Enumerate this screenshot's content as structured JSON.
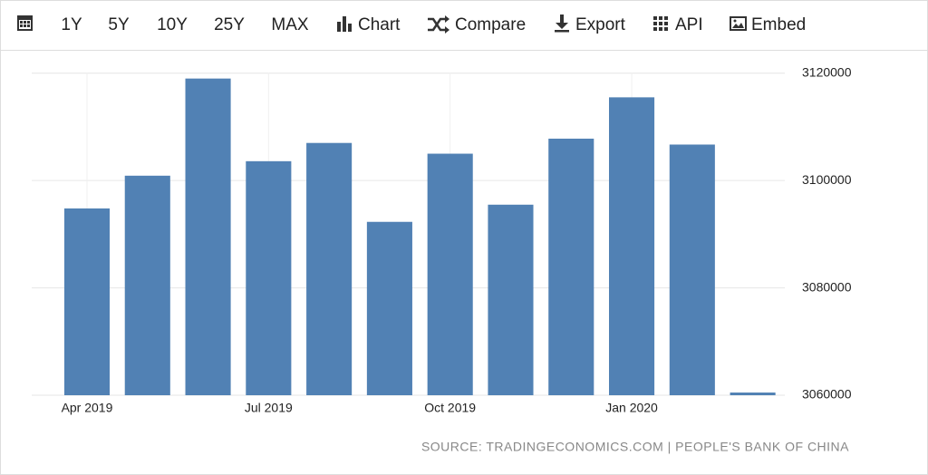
{
  "toolbar": {
    "items": [
      "1Y",
      "5Y",
      "10Y",
      "25Y",
      "MAX",
      "Chart",
      "Compare",
      "Export",
      "API",
      "Embed"
    ]
  },
  "chart_data": {
    "type": "bar",
    "categories": [
      "Apr 2019",
      null,
      null,
      "Jul 2019",
      null,
      null,
      "Oct 2019",
      null,
      null,
      "Jan 2020",
      null,
      null
    ],
    "values": [
      3094800,
      3100900,
      3119000,
      3103600,
      3107000,
      3092300,
      3105000,
      3095500,
      3107800,
      3115500,
      3106700,
      3060500
    ],
    "color": "#5181b4",
    "ylim": [
      3060000,
      3123500
    ],
    "yticks": [
      3060000,
      3080000,
      3100000,
      3120000
    ],
    "grid": true,
    "source": "SOURCE: TRADINGECONOMICS.COM | PEOPLE'S BANK OF CHINA"
  }
}
